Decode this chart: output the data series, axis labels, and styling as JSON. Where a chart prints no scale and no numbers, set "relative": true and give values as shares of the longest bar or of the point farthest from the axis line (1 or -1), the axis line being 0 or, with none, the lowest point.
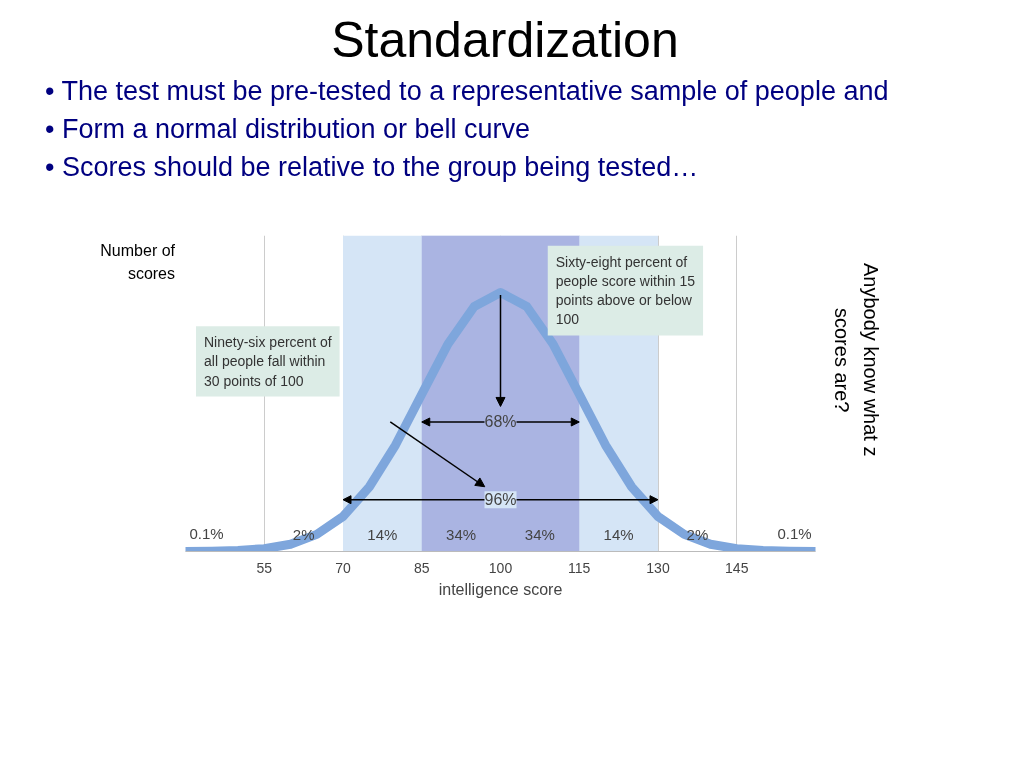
{
  "chart_data": {
    "type": "line",
    "relative": true,
    "title": "Standardization",
    "xlabel": "intelligence score",
    "ylabel": "Number of scores",
    "x": [
      40,
      45,
      50,
      55,
      60,
      65,
      70,
      75,
      80,
      85,
      90,
      95,
      100,
      105,
      110,
      115,
      120,
      125,
      130,
      135,
      140,
      145,
      150,
      155,
      160
    ],
    "series": [
      {
        "color": "#7ea6dc",
        "values": [
          0.0,
          0.001,
          0.004,
          0.011,
          0.028,
          0.066,
          0.135,
          0.249,
          0.411,
          0.607,
          0.801,
          0.946,
          1,
          0.946,
          0.801,
          0.607,
          0.411,
          0.249,
          0.135,
          0.066,
          0.028,
          0.011,
          0.004,
          0.001,
          0.0
        ]
      }
    ],
    "xlim": [
      40,
      160
    ],
    "xticks": [
      55,
      70,
      85,
      100,
      115,
      130,
      145
    ],
    "grid": "x",
    "bands": [
      {
        "axis": "x",
        "from": 70,
        "to": 130,
        "label": "96%",
        "color": "#d5e5f6"
      },
      {
        "axis": "x",
        "from": 85,
        "to": 115,
        "label": "68%",
        "color": "#aab4e2"
      }
    ],
    "annotations": [
      "• The test must be pre-tested to a representative sample of people and",
      "• Form a normal distribution or bell curve",
      "• Scores should be relative to the group being tested…",
      "Anybody know what z scores are?",
      "Sixty-eight percent of people score within 15 points above or below 100",
      "Ninety-six percent of all people fall within 30 points of 100",
      "0.1%",
      "2%",
      "14%",
      "34%",
      "34%",
      "14%",
      "2%",
      "0.1%"
    ]
  }
}
